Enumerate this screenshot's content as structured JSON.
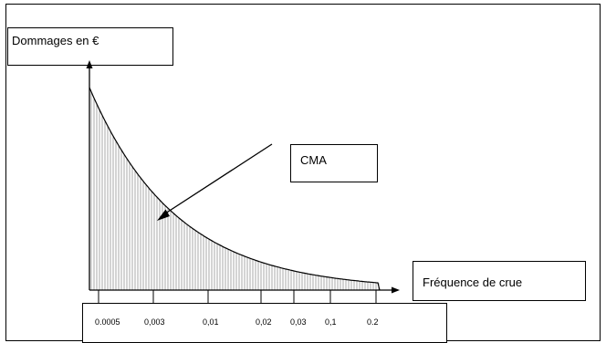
{
  "chart_data": {
    "type": "area",
    "title": "",
    "ylabel": "Dommages en €",
    "xlabel": "Fréquence de crue",
    "annotation": "CMA",
    "x_tick_labels": [
      "0.0005",
      "0,003",
      "0,01",
      "0,02",
      "0,03",
      "0,1",
      "0.2"
    ],
    "grid": false,
    "legend": "none",
    "colors": {
      "curve": "#000000",
      "hatch": "#555555",
      "axis": "#000000"
    }
  }
}
